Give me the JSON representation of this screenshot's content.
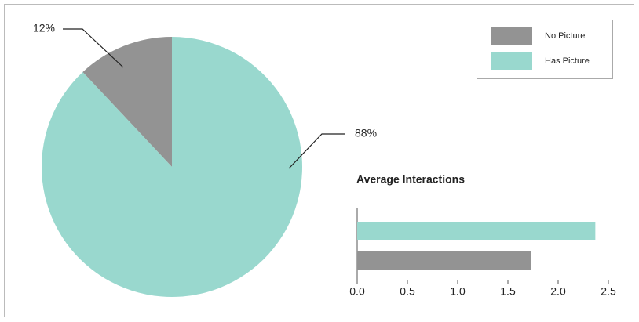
{
  "chart_data": [
    {
      "type": "pie",
      "categories": [
        "No Picture",
        "Has Picture"
      ],
      "values": [
        12,
        88
      ],
      "value_labels": [
        "12%",
        "88%"
      ],
      "colors": [
        "#939393",
        "#99d8ce"
      ],
      "legend": "top-right"
    },
    {
      "type": "hbar",
      "title": "Average Interactions",
      "categories": [
        null,
        null
      ],
      "values": [
        2.37,
        1.73
      ],
      "colors": [
        "#99d8ce",
        "#939393"
      ],
      "xlim": [
        0,
        2.5
      ],
      "xticks": [
        {
          "value": 0,
          "label": "0.0"
        },
        0.5,
        {
          "value": 1,
          "label": "1.0"
        },
        1.5,
        {
          "value": 2,
          "label": "2.0"
        },
        2.5
      ]
    }
  ]
}
